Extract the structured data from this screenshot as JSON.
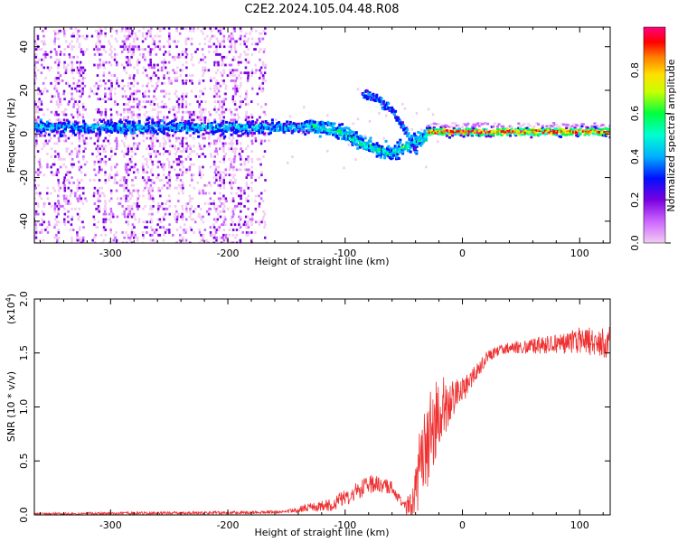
{
  "figure_title": "C2E2.2024.105.04.48.R08",
  "chart_data": [
    {
      "type": "heatmap",
      "title": "",
      "xlabel": "Height of straight line (km)",
      "ylabel": "Frequency (Hz)",
      "xlim": [
        -365,
        126
      ],
      "ylim": [
        -50,
        49
      ],
      "xticks": [
        -300,
        -200,
        -100,
        0,
        100
      ],
      "yticks": [
        -40,
        -20,
        0,
        20,
        40
      ],
      "xtick_labels": [
        "-300",
        "-200",
        "-100",
        "0",
        "100"
      ],
      "ytick_labels": [
        "-40",
        "-20",
        "0",
        "20",
        "40"
      ],
      "grid": false,
      "value_range": [
        0,
        1
      ],
      "colorbar": {
        "label": "Normalized spectral amplitude",
        "ticks": [
          0.0,
          0.2,
          0.4,
          0.6,
          0.8
        ],
        "tick_labels": [
          "0.0",
          "0.2",
          "0.4",
          "0.6",
          "0.8"
        ],
        "colormap": [
          "#f2ccf2",
          "#cc66ff",
          "#7a00e0",
          "#0010ff",
          "#00b0ff",
          "#00ffd0",
          "#00ff40",
          "#c8ff00",
          "#ffe000",
          "#ff8000",
          "#ff0000",
          "#ff0080"
        ]
      },
      "features": {
        "noise_region_x": [
          -365,
          -165
        ],
        "main_band_center_hz": 3,
        "main_band_spread_hz": 4,
        "dip_track": {
          "x": [
            -130,
            -100,
            -80,
            -60,
            -45,
            -35
          ],
          "y": [
            4,
            0,
            -6,
            -9,
            -5,
            -2
          ]
        },
        "upper_track": {
          "x": [
            -85,
            -75,
            -60,
            -50,
            -40
          ],
          "y": [
            18,
            17,
            11,
            3,
            -8
          ]
        },
        "high_amplitude_band_x": [
          -30,
          126
        ],
        "high_amplitude_band_hz": 1
      }
    },
    {
      "type": "line",
      "title": "",
      "xlabel": "Height of straight line (km)",
      "ylabel": "SNR (10 * v/v)",
      "y_multiplier_label": "(x10",
      "y_multiplier_exp": "4",
      "y_multiplier_close": ")",
      "xlim": [
        -365,
        126
      ],
      "ylim": [
        0,
        2.0
      ],
      "xticks": [
        -300,
        -200,
        -100,
        0,
        100
      ],
      "yticks": [
        0.0,
        0.5,
        1.0,
        1.5,
        2.0
      ],
      "xtick_labels": [
        "-300",
        "-200",
        "-100",
        "0",
        "100"
      ],
      "ytick_labels": [
        "0.0",
        "0.5",
        "1.0",
        "1.5",
        "2.0"
      ],
      "grid": false,
      "series": [
        {
          "color": "#ee3030",
          "envelope": {
            "x": [
              -365,
              -300,
              -200,
              -150,
              -130,
              -110,
              -100,
              -90,
              -75,
              -60,
              -50,
              -45,
              -40,
              -35,
              -30,
              -25,
              -20,
              -10,
              0,
              10,
              20,
              30,
              40,
              50,
              60,
              70,
              80,
              90,
              100,
              110,
              126
            ],
            "y": [
              0.01,
              0.015,
              0.02,
              0.03,
              0.07,
              0.1,
              0.16,
              0.22,
              0.3,
              0.25,
              0.08,
              0.06,
              0.2,
              0.55,
              0.7,
              0.85,
              0.95,
              1.05,
              1.15,
              1.3,
              1.45,
              1.52,
              1.55,
              1.55,
              1.56,
              1.57,
              1.58,
              1.6,
              1.62,
              1.6,
              1.6
            ]
          },
          "noise": {
            "x": [
              -365,
              -150,
              -120,
              -100,
              -80,
              -60,
              -50,
              -40,
              -30,
              -20,
              -10,
              0,
              20,
              40,
              80,
              126
            ],
            "y": [
              0.01,
              0.015,
              0.05,
              0.08,
              0.09,
              0.06,
              0.04,
              0.3,
              0.45,
              0.35,
              0.2,
              0.12,
              0.06,
              0.05,
              0.1,
              0.15
            ]
          }
        }
      ]
    }
  ]
}
